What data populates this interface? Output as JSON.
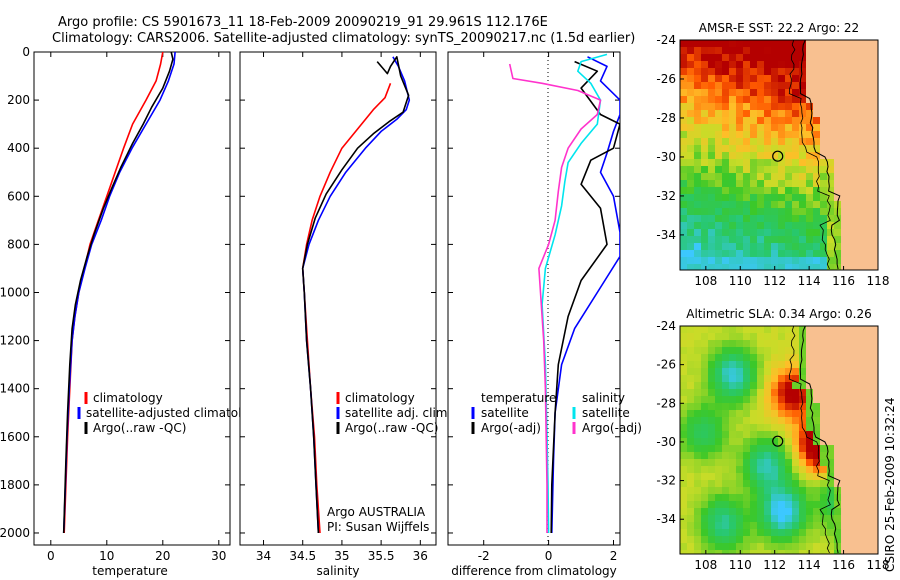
{
  "header": {
    "line1": "Argo profile: CS 5901673_11 18-Feb-2009 20090219_91 29.961S 112.176E",
    "line2": "Climatology: CARS2006. Satellite-adjusted climatology: synTS_20090217.nc (1.5d earlier)"
  },
  "colors": {
    "clim": "#ff0000",
    "sat": "#0000ff",
    "argo": "#000000",
    "cyan": "#00e5ee",
    "magenta": "#ff33cc",
    "land": "#f8c090"
  },
  "chart_data": [
    {
      "type": "line",
      "name": "temperature",
      "xlabel": "temperature",
      "ylabel": "",
      "xlim": [
        -3,
        32
      ],
      "ylim": [
        2050,
        0
      ],
      "xticks": [
        "0",
        "10",
        "20",
        "30"
      ],
      "yticks": [
        "0",
        "200",
        "400",
        "600",
        "800",
        "1000",
        "1200",
        "1400",
        "1600",
        "1800",
        "2000"
      ],
      "legend": {
        "location": "lower-right",
        "entries": [
          "climatology",
          "satellite-adjusted climatology",
          "Argo(..raw -QC)"
        ]
      },
      "series": [
        {
          "name": "climatology",
          "color": "#ff0000",
          "points": [
            [
              20.0,
              0
            ],
            [
              19.6,
              50
            ],
            [
              18.8,
              120
            ],
            [
              17.0,
              200
            ],
            [
              14.6,
              300
            ],
            [
              13.0,
              400
            ],
            [
              11.5,
              500
            ],
            [
              10.0,
              600
            ],
            [
              8.5,
              700
            ],
            [
              7.0,
              800
            ],
            [
              6.0,
              900
            ],
            [
              5.0,
              1000
            ],
            [
              4.3,
              1100
            ],
            [
              3.8,
              1200
            ],
            [
              3.4,
              1400
            ],
            [
              3.0,
              1600
            ],
            [
              2.7,
              1800
            ],
            [
              2.4,
              2000
            ]
          ]
        },
        {
          "name": "satellite-adjusted climatology",
          "color": "#0000ff",
          "points": [
            [
              22.2,
              0
            ],
            [
              22.0,
              50
            ],
            [
              21.0,
              120
            ],
            [
              19.5,
              200
            ],
            [
              17.0,
              300
            ],
            [
              14.5,
              400
            ],
            [
              12.3,
              500
            ],
            [
              10.5,
              600
            ],
            [
              9.0,
              700
            ],
            [
              7.3,
              800
            ],
            [
              6.1,
              900
            ],
            [
              5.0,
              1000
            ],
            [
              4.3,
              1100
            ],
            [
              3.8,
              1200
            ],
            [
              3.3,
              1400
            ],
            [
              2.9,
              1600
            ],
            [
              2.6,
              1800
            ],
            [
              2.3,
              2000
            ]
          ]
        },
        {
          "name": "Argo(..raw -QC)",
          "color": "#000000",
          "points": [
            [
              21.5,
              0
            ],
            [
              21.8,
              30
            ],
            [
              21.2,
              80
            ],
            [
              20.0,
              150
            ],
            [
              18.0,
              230
            ],
            [
              16.5,
              300
            ],
            [
              14.6,
              380
            ],
            [
              12.5,
              480
            ],
            [
              11.0,
              560
            ],
            [
              9.4,
              650
            ],
            [
              7.7,
              760
            ],
            [
              6.5,
              850
            ],
            [
              5.3,
              950
            ],
            [
              4.4,
              1050
            ],
            [
              3.8,
              1150
            ],
            [
              3.4,
              1300
            ],
            [
              3.0,
              1500
            ],
            [
              2.7,
              1700
            ],
            [
              2.5,
              1850
            ],
            [
              2.3,
              2000
            ]
          ]
        }
      ]
    },
    {
      "type": "line",
      "name": "salinity",
      "xlabel": "salinity",
      "ylabel": "",
      "xlim": [
        33.7,
        36.2
      ],
      "ylim": [
        2050,
        0
      ],
      "xticks": [
        "34",
        "34.5",
        "35",
        "35.5",
        "36"
      ],
      "legend": {
        "location": "lower-right",
        "entries": [
          "climatology",
          "satellite adj. clim.",
          "Argo(..raw -QC)"
        ]
      },
      "annotation": [
        "Argo AUSTRALIA",
        "PI: Susan Wijffels"
      ],
      "series": [
        {
          "name": "climatology",
          "color": "#ff0000",
          "points": [
            [
              35.62,
              130
            ],
            [
              35.55,
              190
            ],
            [
              35.4,
              240
            ],
            [
              35.2,
              320
            ],
            [
              35.0,
              400
            ],
            [
              34.85,
              500
            ],
            [
              34.72,
              600
            ],
            [
              34.62,
              700
            ],
            [
              34.55,
              800
            ],
            [
              34.5,
              900
            ],
            [
              34.52,
              1000
            ],
            [
              34.56,
              1200
            ],
            [
              34.6,
              1400
            ],
            [
              34.65,
              1600
            ],
            [
              34.68,
              1800
            ],
            [
              34.72,
              2000
            ]
          ]
        },
        {
          "name": "satellite adj. clim.",
          "color": "#0000ff",
          "points": [
            [
              35.65,
              20
            ],
            [
              35.72,
              60
            ],
            [
              35.8,
              120
            ],
            [
              35.86,
              200
            ],
            [
              35.82,
              240
            ],
            [
              35.7,
              280
            ],
            [
              35.5,
              330
            ],
            [
              35.3,
              400
            ],
            [
              35.05,
              500
            ],
            [
              34.85,
              600
            ],
            [
              34.7,
              700
            ],
            [
              34.58,
              800
            ],
            [
              34.5,
              900
            ],
            [
              34.52,
              1000
            ],
            [
              34.55,
              1200
            ],
            [
              34.6,
              1400
            ],
            [
              34.64,
              1600
            ],
            [
              34.67,
              1800
            ],
            [
              34.7,
              2000
            ]
          ]
        },
        {
          "name": "Argo(..raw -QC)",
          "color": "#000000",
          "points": [
            [
              35.45,
              40
            ],
            [
              35.58,
              90
            ],
            [
              35.62,
              60
            ],
            [
              35.7,
              20
            ],
            [
              35.75,
              100
            ],
            [
              35.85,
              180
            ],
            [
              35.78,
              250
            ],
            [
              35.6,
              290
            ],
            [
              35.4,
              340
            ],
            [
              35.2,
              400
            ],
            [
              35.0,
              490
            ],
            [
              34.8,
              590
            ],
            [
              34.66,
              690
            ],
            [
              34.56,
              800
            ],
            [
              34.5,
              900
            ],
            [
              34.52,
              1000
            ],
            [
              34.55,
              1200
            ],
            [
              34.6,
              1400
            ],
            [
              34.64,
              1600
            ],
            [
              34.67,
              1800
            ],
            [
              34.7,
              2000
            ]
          ]
        }
      ]
    },
    {
      "type": "line",
      "name": "difference from climatology",
      "xlabel": "difference from climatology",
      "ylabel": "",
      "xlim": [
        -3.1,
        2.2
      ],
      "ylim": [
        2050,
        0
      ],
      "xticks": [
        "-2",
        "0",
        "2"
      ],
      "legend": {
        "location": "lower-center",
        "entries": [
          "temperature",
          "satellite",
          "Argo(-adj)",
          "salinity",
          "satellite",
          "Argo(-adj)"
        ]
      },
      "series": [
        {
          "name": "temperature satellite",
          "color": "#0000ff",
          "points": [
            [
              1.2,
              20
            ],
            [
              1.8,
              60
            ],
            [
              1.6,
              120
            ],
            [
              2.2,
              200
            ],
            [
              2.2,
              260
            ],
            [
              2.0,
              330
            ],
            [
              1.8,
              420
            ],
            [
              1.6,
              500
            ],
            [
              2.0,
              600
            ],
            [
              2.2,
              750
            ],
            [
              2.2,
              850
            ],
            [
              1.5,
              1000
            ],
            [
              0.8,
              1150
            ],
            [
              0.4,
              1300
            ],
            [
              0.2,
              1500
            ],
            [
              0.15,
              1700
            ],
            [
              0.1,
              2000
            ]
          ]
        },
        {
          "name": "temperature Argo(-adj)",
          "color": "#000000",
          "points": [
            [
              0.8,
              40
            ],
            [
              1.5,
              80
            ],
            [
              1.0,
              150
            ],
            [
              1.6,
              260
            ],
            [
              2.2,
              300
            ],
            [
              2.0,
              400
            ],
            [
              1.3,
              450
            ],
            [
              1.0,
              550
            ],
            [
              1.6,
              650
            ],
            [
              1.8,
              800
            ],
            [
              1.0,
              950
            ],
            [
              0.6,
              1100
            ],
            [
              0.3,
              1300
            ],
            [
              0.2,
              1500
            ],
            [
              0.1,
              1800
            ],
            [
              0.08,
              2000
            ]
          ]
        },
        {
          "name": "salinity satellite",
          "color": "#00e5ee",
          "points": [
            [
              1.8,
              10
            ],
            [
              1.0,
              40
            ],
            [
              0.9,
              80
            ],
            [
              1.3,
              130
            ],
            [
              1.6,
              200
            ],
            [
              1.5,
              300
            ],
            [
              1.0,
              380
            ],
            [
              0.6,
              460
            ],
            [
              0.5,
              540
            ],
            [
              0.4,
              640
            ],
            [
              0.2,
              760
            ],
            [
              -0.1,
              900
            ],
            [
              -0.2,
              1050
            ],
            [
              -0.1,
              1300
            ],
            [
              -0.05,
              1600
            ],
            [
              -0.02,
              1800
            ],
            [
              0.0,
              2000
            ]
          ]
        },
        {
          "name": "salinity Argo(-adj)",
          "color": "#ff33cc",
          "points": [
            [
              -1.2,
              50
            ],
            [
              -1.1,
              110
            ],
            [
              -0.2,
              130
            ],
            [
              0.9,
              160
            ],
            [
              1.6,
              200
            ],
            [
              1.5,
              260
            ],
            [
              1.0,
              320
            ],
            [
              0.6,
              400
            ],
            [
              0.4,
              480
            ],
            [
              0.3,
              580
            ],
            [
              0.2,
              700
            ],
            [
              0.0,
              800
            ],
            [
              -0.3,
              900
            ],
            [
              -0.25,
              1000
            ],
            [
              -0.15,
              1200
            ],
            [
              -0.1,
              1400
            ],
            [
              -0.05,
              1800
            ],
            [
              -0.05,
              2000
            ]
          ]
        }
      ]
    },
    {
      "type": "heatmap",
      "name": "sst-map",
      "title": "AMSR-E SST: 22.2 Argo: 22",
      "xticks": [
        "108",
        "110",
        "112",
        "114",
        "116",
        "118"
      ],
      "yticks": [
        "-24",
        "-26",
        "-28",
        "-30",
        "-32",
        "-34"
      ],
      "xlim": [
        106.5,
        118
      ],
      "ylim": [
        -35.8,
        -24
      ],
      "marker": {
        "lon": 112.176,
        "lat": -29.961
      }
    },
    {
      "type": "heatmap",
      "name": "sla-map",
      "title": "Altimetric SLA: 0.34 Argo: 0.26",
      "xticks": [
        "108",
        "110",
        "112",
        "114",
        "116",
        "118"
      ],
      "yticks": [
        "-24",
        "-26",
        "-28",
        "-30",
        "-32",
        "-34"
      ],
      "xlim": [
        106.5,
        118
      ],
      "ylim": [
        -35.8,
        -24
      ],
      "marker": {
        "lon": 112.176,
        "lat": -29.961
      }
    }
  ],
  "credit": "CSIRO 25-Feb-2009 10:32:24"
}
